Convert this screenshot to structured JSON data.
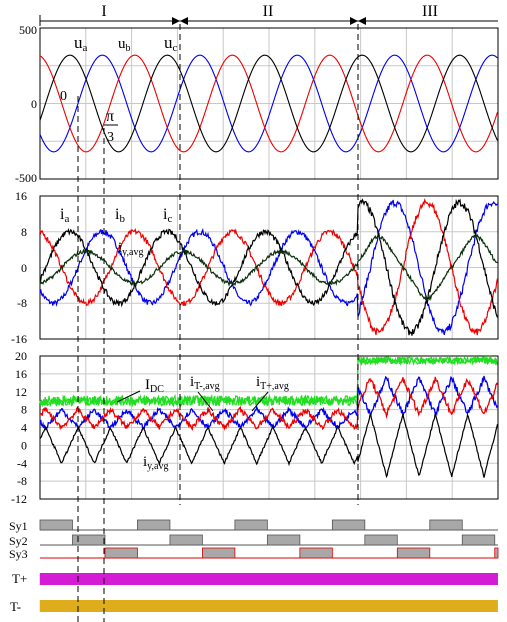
{
  "regions": [
    "I",
    "II",
    "III"
  ],
  "colors": {
    "a": "#0000ee",
    "b": "#ee0000",
    "c": "#000000",
    "avg": "#0a300a",
    "dc": "#22dd22",
    "tplus": "#dd22dd",
    "tminus": "#e6b422",
    "sy_fill": "#a8a8a8",
    "grid": "#c8c8c8"
  },
  "panel_voltage": {
    "ytick_labels": [
      "500",
      "0",
      "-500"
    ],
    "annotations": {
      "ua": "u",
      "ua_sub": "a",
      "ub": "u",
      "ub_sub": "b",
      "uc": "u",
      "uc_sub": "c",
      "zero": "0",
      "pi": "π",
      "three": "3"
    }
  },
  "panel_current": {
    "ytick_labels": [
      "16",
      "8",
      "0",
      "-8",
      "-16"
    ],
    "annotations": {
      "ia": "i",
      "ia_sub": "a",
      "ib": "i",
      "ib_sub": "b",
      "ic": "i",
      "ic_sub": "c",
      "iyavg": "i",
      "iyavg_sub": "y,avg"
    }
  },
  "panel_link": {
    "ytick_labels": [
      "20",
      "16",
      "12",
      "8",
      "4",
      "0",
      "-4",
      "-8",
      "-12"
    ],
    "annotations": {
      "idc": "I",
      "idc_sub": "DC",
      "itm": "i",
      "itm_sub": "T-,avg",
      "itp": "i",
      "itp_sub": "T+,avg",
      "iy": "i",
      "iy_sub": "y,avg"
    }
  },
  "panel_switch": {
    "labels": [
      "Sy1",
      "Sy2",
      "Sy3"
    ]
  },
  "panel_thyristor": {
    "labels": [
      "T+",
      "T-"
    ]
  },
  "chart_data": [
    {
      "type": "line",
      "title": "",
      "ylim": [
        -500,
        500
      ],
      "yticks": [
        500,
        0,
        -500
      ],
      "grid": true,
      "series": [
        {
          "name": "ua",
          "amplitude": 320,
          "phase_deg": 0
        },
        {
          "name": "ub",
          "amplitude": 320,
          "phase_deg": -120
        },
        {
          "name": "uc",
          "amplitude": 320,
          "phase_deg": 120
        }
      ],
      "fundamental_periods": 4.7
    },
    {
      "type": "line",
      "ylim": [
        -16,
        16
      ],
      "yticks": [
        16,
        8,
        0,
        -8,
        -16
      ],
      "grid": true,
      "series": [
        {
          "name": "ia",
          "amplitude_regions_I_II": 8,
          "amplitude_region_III": 14.5
        },
        {
          "name": "ib",
          "amplitude_regions_I_II": 8,
          "amplitude_region_III": 14.5
        },
        {
          "name": "ic",
          "amplitude_regions_I_II": 8,
          "amplitude_region_III": 14.5
        },
        {
          "name": "iy,avg",
          "amplitude_regions_I_II": 4,
          "amplitude_region_III": 7
        }
      ]
    },
    {
      "type": "line",
      "ylim": [
        -12,
        20
      ],
      "yticks": [
        20,
        16,
        12,
        8,
        4,
        0,
        -4,
        -8,
        -12
      ],
      "grid": true,
      "series": [
        {
          "name": "IDC",
          "level_regions_I_II": 10,
          "level_region_III": 19
        },
        {
          "name": "iT-,avg",
          "min_regions_I_II": 4,
          "max_regions_I_II": 8,
          "min_region_III": 7,
          "max_region_III": 15
        },
        {
          "name": "iT+,avg",
          "min_regions_I_II": 4,
          "max_regions_I_II": 8,
          "min_region_III": 7,
          "max_region_III": 15
        },
        {
          "name": "iy,avg",
          "min_regions_I_II": -4,
          "max_regions_I_II": 4,
          "min_region_III": -7,
          "max_region_III": 7
        }
      ]
    }
  ]
}
